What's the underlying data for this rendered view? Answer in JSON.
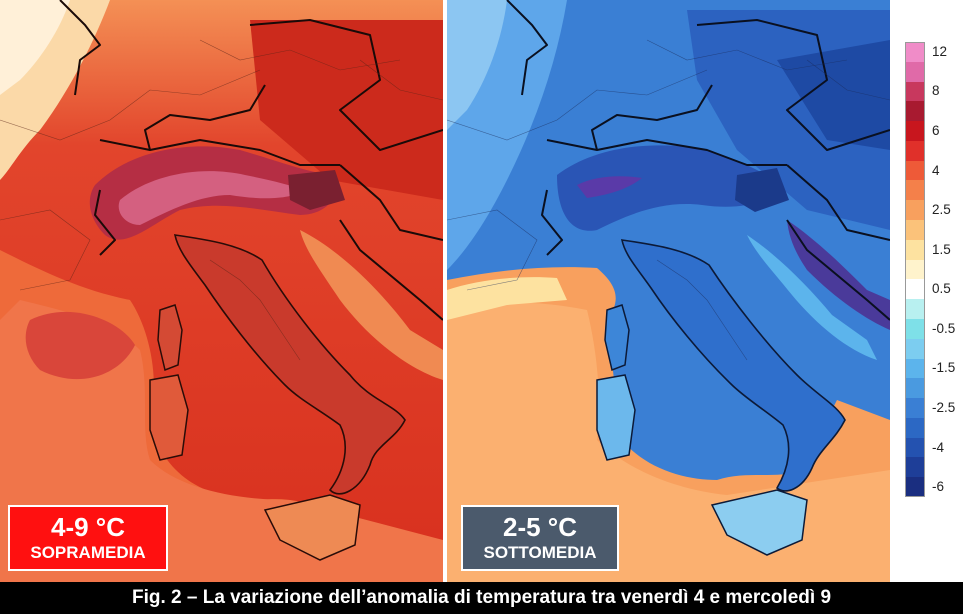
{
  "left_panel": {
    "range": "4-9 °C",
    "label": "SOPRAMEDIA",
    "badge_color": "#ff1010"
  },
  "right_panel": {
    "range": "2-5 °C",
    "label": "SOTTOMEDIA",
    "badge_color": "#4b5a6c"
  },
  "legend": {
    "items": [
      {
        "label": "12",
        "color": "#f08cc8"
      },
      {
        "label": "",
        "color": "#e06aa8"
      },
      {
        "label": "8",
        "color": "#c8385e"
      },
      {
        "label": "",
        "color": "#a81a30"
      },
      {
        "label": "6",
        "color": "#c8161e"
      },
      {
        "label": "",
        "color": "#e0302a"
      },
      {
        "label": "4",
        "color": "#ee5a38"
      },
      {
        "label": "",
        "color": "#f4804a"
      },
      {
        "label": "2.5",
        "color": "#f8a05e"
      },
      {
        "label": "",
        "color": "#fbc27a"
      },
      {
        "label": "1.5",
        "color": "#fde2a0"
      },
      {
        "label": "",
        "color": "#fff3cc"
      },
      {
        "label": "0.5",
        "color": "#ffffff"
      },
      {
        "label": "",
        "color": "#b8f0f0"
      },
      {
        "label": "-0.5",
        "color": "#7ee0e8"
      },
      {
        "label": "",
        "color": "#7ccdf0"
      },
      {
        "label": "-1.5",
        "color": "#5cb4ec"
      },
      {
        "label": "",
        "color": "#4a9ae0"
      },
      {
        "label": "-2.5",
        "color": "#3a7fd4"
      },
      {
        "label": "",
        "color": "#2c68c4"
      },
      {
        "label": "-4",
        "color": "#2452b0"
      },
      {
        "label": "",
        "color": "#1e3e98"
      },
      {
        "label": "-6",
        "color": "#1a2e80"
      }
    ]
  },
  "caption": "Fig. 2 – La variazione dell’anomalia di temperatura tra venerdì 4 e mercoledì 9"
}
